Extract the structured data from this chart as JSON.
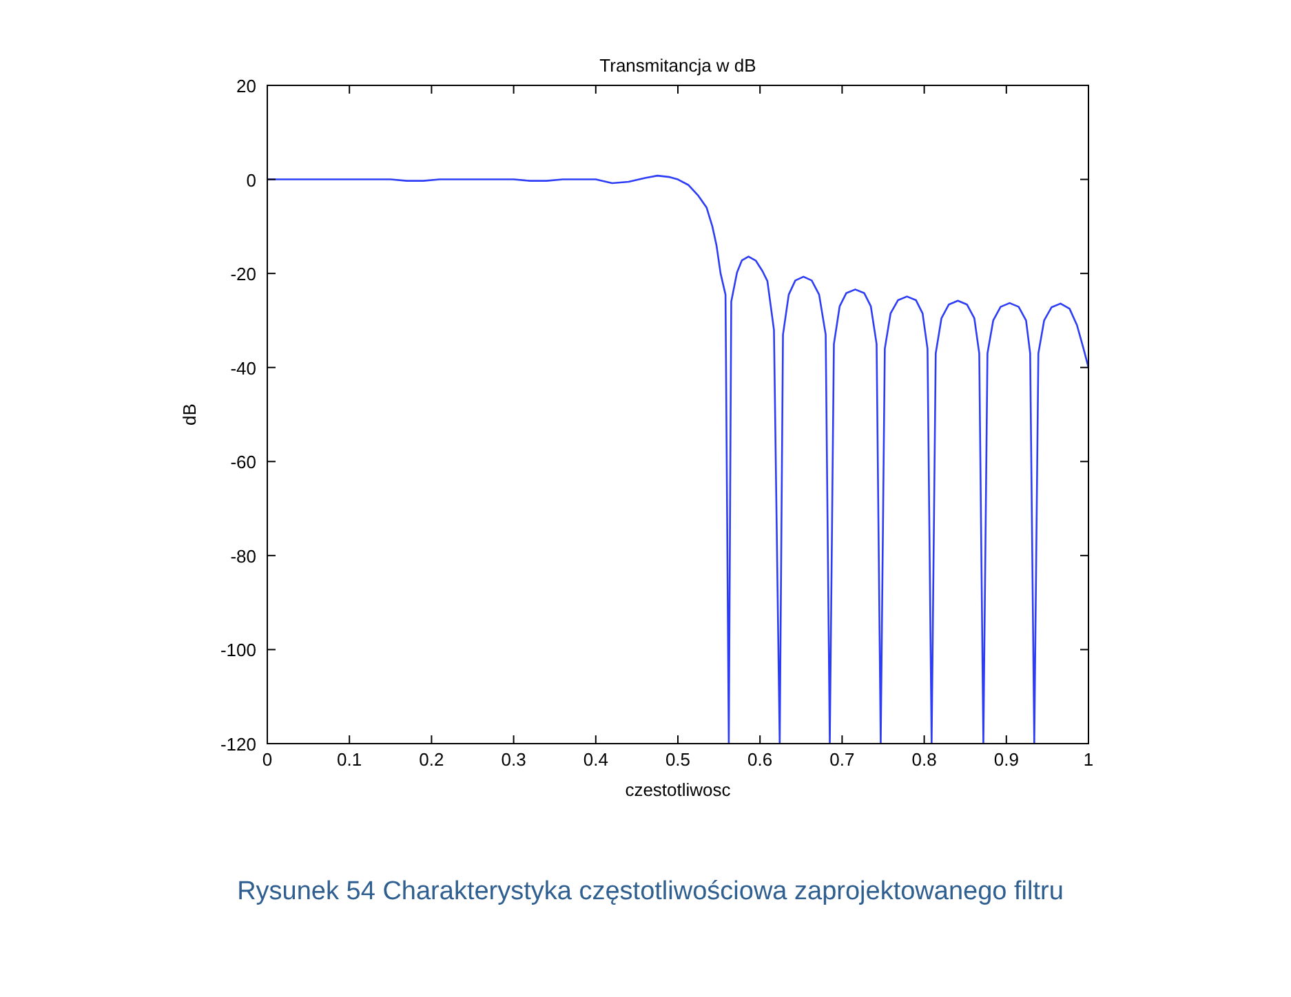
{
  "chart_data": {
    "type": "line",
    "title": "Transmitancja w dB",
    "xlabel": "czestotliwosc",
    "ylabel": "dB",
    "annotations": [
      "Rysunek 54 Charakterystyka częstotliwościowa zaprojektowanego filtru"
    ],
    "x": [
      0,
      0.05,
      0.1,
      0.15,
      0.17,
      0.19,
      0.21,
      0.25,
      0.3,
      0.32,
      0.34,
      0.36,
      0.4,
      0.42,
      0.44,
      0.46,
      0.475,
      0.49,
      0.5,
      0.513,
      0.525,
      0.535,
      0.542,
      0.547,
      0.552,
      0.558,
      0.562,
      0.565,
      0.572,
      0.578,
      0.586,
      0.595,
      0.603,
      0.609,
      0.617,
      0.624,
      0.628,
      0.635,
      0.643,
      0.653,
      0.663,
      0.672,
      0.68,
      0.685,
      0.69,
      0.697,
      0.705,
      0.716,
      0.727,
      0.735,
      0.742,
      0.747,
      0.752,
      0.759,
      0.768,
      0.779,
      0.79,
      0.798,
      0.804,
      0.809,
      0.814,
      0.821,
      0.83,
      0.841,
      0.852,
      0.861,
      0.867,
      0.872,
      0.877,
      0.884,
      0.893,
      0.904,
      0.915,
      0.924,
      0.929,
      0.934,
      0.939,
      0.946,
      0.955,
      0.966,
      0.977,
      0.986,
      0.994,
      1.0
    ],
    "series": [
      {
        "color": "#2d3cf5",
        "values": [
          0,
          0,
          0,
          0,
          -0.3,
          -0.3,
          0,
          0,
          0,
          -0.3,
          -0.3,
          0,
          0,
          -0.8,
          -0.5,
          0.3,
          0.8,
          0.5,
          0,
          -1.2,
          -3.5,
          -6,
          -10,
          -14,
          -20,
          -24.5,
          -120,
          -26,
          -19.8,
          -17.2,
          -16.4,
          -17.3,
          -19.5,
          -21.6,
          -32,
          -120,
          -33,
          -24.5,
          -21.5,
          -20.7,
          -21.5,
          -24.5,
          -33,
          -120,
          -35,
          -27,
          -24.2,
          -23.4,
          -24.2,
          -27,
          -35,
          -120,
          -36,
          -28.5,
          -25.7,
          -24.9,
          -25.7,
          -28.5,
          -36,
          -120,
          -37,
          -29.5,
          -26.6,
          -25.8,
          -26.6,
          -29.5,
          -37,
          -120,
          -37,
          -30,
          -27.1,
          -26.3,
          -27.1,
          -30,
          -37,
          -120,
          -37,
          -30,
          -27.2,
          -26.4,
          -27.5,
          -31,
          -36,
          -40
        ]
      }
    ],
    "xlim": [
      0,
      1
    ],
    "xticks": [
      0,
      0.1,
      0.2,
      0.3,
      0.4,
      0.5,
      0.6,
      0.7,
      0.8,
      0.9,
      1
    ],
    "ylim": [
      -120,
      20
    ],
    "yticks": [
      -120,
      -100,
      -80,
      -60,
      -40,
      -20,
      0,
      20
    ],
    "grid": false
  }
}
